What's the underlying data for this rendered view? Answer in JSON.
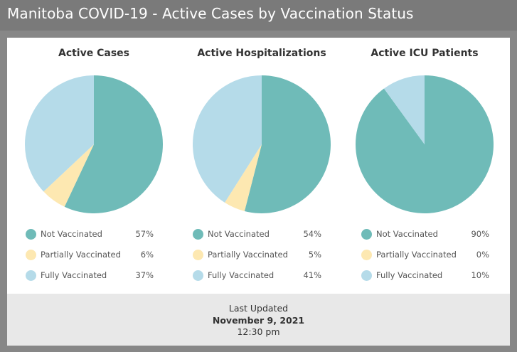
{
  "header": {
    "title": "Manitoba COVID-19 - Active Cases by Vaccination Status"
  },
  "colors": {
    "not_vaccinated": "#6fbbb8",
    "partially_vaccinated": "#fde8b1",
    "fully_vaccinated": "#b5dbe9"
  },
  "chart_data": [
    {
      "type": "pie",
      "title": "Active Cases",
      "series": [
        {
          "name": "Not Vaccinated",
          "value": 57,
          "label": "57%"
        },
        {
          "name": "Partially Vaccinated",
          "value": 6,
          "label": "6%"
        },
        {
          "name": "Fully Vaccinated",
          "value": 37,
          "label": "37%"
        }
      ]
    },
    {
      "type": "pie",
      "title": "Active Hospitalizations",
      "series": [
        {
          "name": "Not Vaccinated",
          "value": 54,
          "label": "54%"
        },
        {
          "name": "Partially Vaccinated",
          "value": 5,
          "label": "5%"
        },
        {
          "name": "Fully Vaccinated",
          "value": 41,
          "label": "41%"
        }
      ]
    },
    {
      "type": "pie",
      "title": "Active ICU Patients",
      "series": [
        {
          "name": "Not Vaccinated",
          "value": 90,
          "label": "90%"
        },
        {
          "name": "Partially Vaccinated",
          "value": 0,
          "label": "0%"
        },
        {
          "name": "Fully Vaccinated",
          "value": 10,
          "label": "10%"
        }
      ]
    }
  ],
  "footer": {
    "label": "Last Updated",
    "date": "November 9, 2021",
    "time": "12:30 pm"
  }
}
